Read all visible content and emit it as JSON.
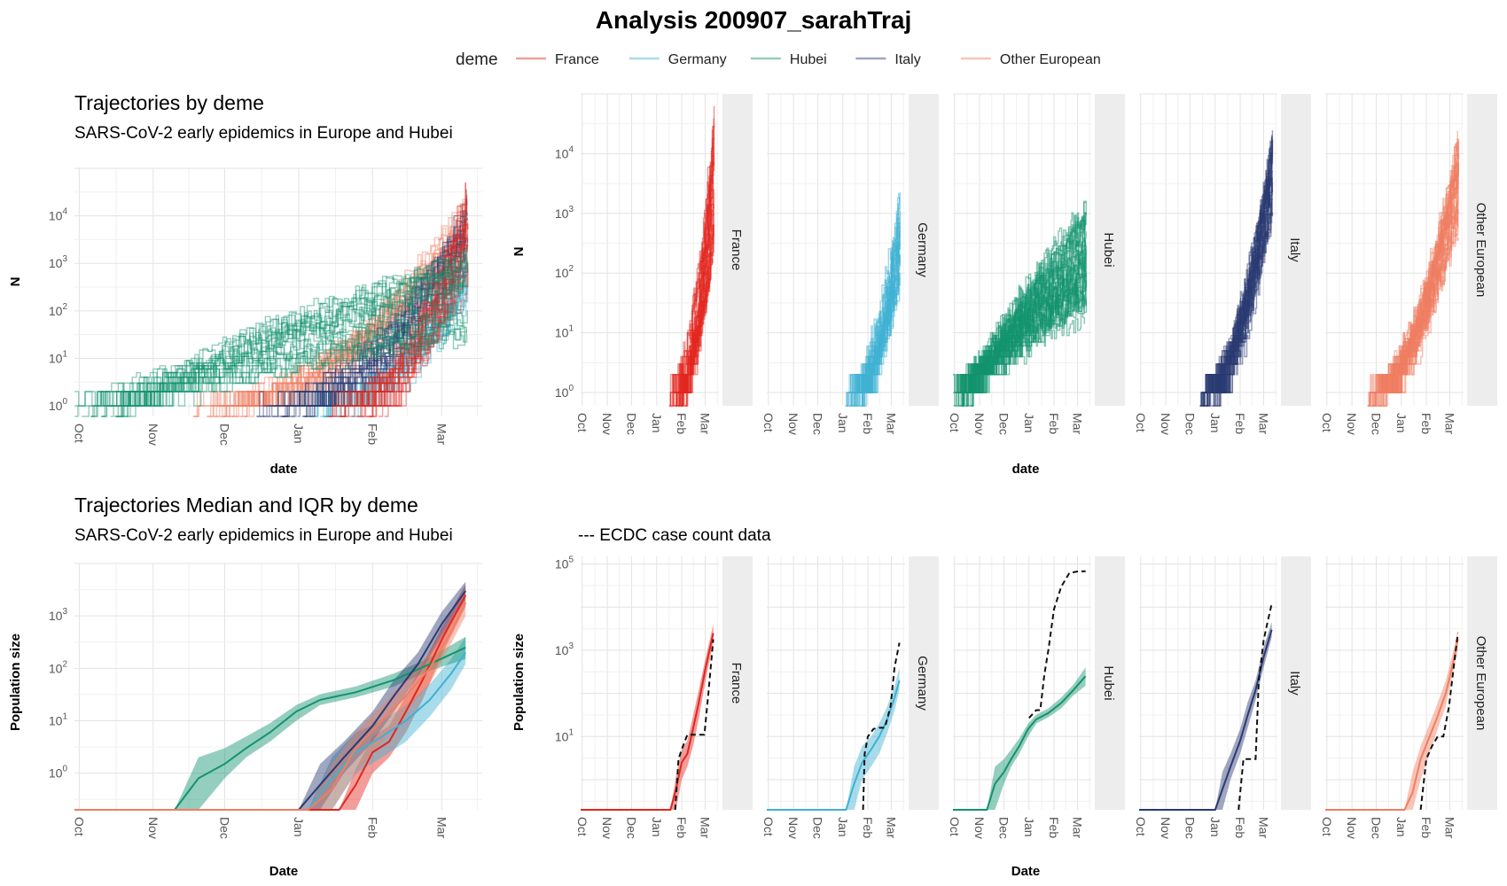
{
  "title": "Analysis  200907_sarahTraj",
  "legend": {
    "title": "deme",
    "position": "top",
    "items": [
      {
        "label": "France",
        "color": "#E3261E"
      },
      {
        "label": "Germany",
        "color": "#3FB1D3"
      },
      {
        "label": "Hubei",
        "color": "#12936E"
      },
      {
        "label": "Italy",
        "color": "#2A3A72"
      },
      {
        "label": "Other European",
        "color": "#F07E62"
      }
    ]
  },
  "panels": {
    "top_left": {
      "title": "Trajectories by deme",
      "subtitle": "SARS-CoV-2 early epidemics in Europe and Hubei",
      "xlabel": "date",
      "ylabel": "N"
    },
    "top_right": {
      "xlabel": "date",
      "ylabel": "N"
    },
    "bottom_left": {
      "title": "Trajectories Median and IQR by deme",
      "subtitle": "SARS-CoV-2 early epidemics in Europe and Hubei",
      "xlabel": "Date",
      "ylabel": "Population size"
    },
    "bottom_right": {
      "subtitle": "--- ECDC case count data",
      "xlabel": "Date",
      "ylabel": "Population size"
    }
  },
  "chart_data": [
    {
      "id": "trajectories-overlay",
      "type": "line",
      "title": "Trajectories by deme",
      "subtitle": "SARS-CoV-2 early epidemics in Europe and Hubei",
      "xlabel": "date",
      "ylabel": "N",
      "y_scale": "log10",
      "x_ticks": [
        "Oct",
        "Nov",
        "Dec",
        "Jan",
        "Feb",
        "Mar"
      ],
      "y_ticks": [
        "10^0",
        "10^1",
        "10^2",
        "10^3",
        "10^4"
      ],
      "xlim": [
        "2019-09-29",
        "2020-03-18"
      ],
      "ylim": [
        0.6,
        100000
      ],
      "grid": true,
      "series_note": "many stochastic trajectories per deme",
      "series": [
        {
          "name": "France",
          "trajectories": 40,
          "start": "2020-01-20",
          "end": "2020-03-12",
          "final_range": [
            300,
            60000
          ]
        },
        {
          "name": "Germany",
          "trajectories": 40,
          "start": "2020-01-10",
          "end": "2020-03-12",
          "final_range": [
            100,
            3500
          ]
        },
        {
          "name": "Hubei",
          "trajectories": 40,
          "start": "2019-10-05",
          "end": "2020-03-12",
          "final_range": [
            20,
            1500
          ]
        },
        {
          "name": "Italy",
          "trajectories": 40,
          "start": "2019-12-20",
          "end": "2020-03-12",
          "final_range": [
            1000,
            25000
          ]
        },
        {
          "name": "Other European",
          "trajectories": 40,
          "start": "2019-11-25",
          "end": "2020-03-12",
          "final_range": [
            500,
            25000
          ]
        }
      ]
    },
    {
      "id": "trajectories-facet",
      "type": "line",
      "xlabel": "date",
      "ylabel": "N",
      "y_scale": "log10",
      "x_ticks": [
        "Oct",
        "Nov",
        "Dec",
        "Jan",
        "Feb",
        "Mar"
      ],
      "y_ticks": [
        "10^0",
        "10^1",
        "10^2",
        "10^3",
        "10^4"
      ],
      "xlim": [
        "2019-09-29",
        "2020-03-18"
      ],
      "ylim": [
        0.6,
        100000
      ],
      "facets": [
        "France",
        "Germany",
        "Hubei",
        "Italy",
        "Other European"
      ],
      "grid": true
    },
    {
      "id": "median-iqr-overlay",
      "type": "area",
      "title": "Trajectories Median and IQR by deme",
      "subtitle": "SARS-CoV-2 early epidemics in Europe and Hubei",
      "xlabel": "Date",
      "ylabel": "Population size",
      "y_scale": "log10",
      "x_ticks": [
        "Oct",
        "Nov",
        "Dec",
        "Jan",
        "Feb",
        "Mar"
      ],
      "y_ticks": [
        "10^0",
        "10^1",
        "10^2",
        "10^3"
      ],
      "xlim": [
        "2019-09-29",
        "2020-03-18"
      ],
      "ylim": [
        0.2,
        10000
      ],
      "grid": true,
      "series": [
        {
          "name": "France",
          "x": [
            "2020-01-18",
            "2020-01-25",
            "2020-02-01",
            "2020-02-08",
            "2020-02-15",
            "2020-02-22",
            "2020-03-01",
            "2020-03-11"
          ],
          "median": [
            0.2,
            0.6,
            2.5,
            4,
            15,
            60,
            350,
            2500
          ],
          "q1": [
            0.2,
            0.2,
            1,
            2,
            6,
            25,
            180,
            1500
          ],
          "q3": [
            0.2,
            1.2,
            5,
            8,
            30,
            120,
            600,
            4000
          ]
        },
        {
          "name": "Germany",
          "x": [
            "2020-01-05",
            "2020-01-15",
            "2020-01-25",
            "2020-02-05",
            "2020-02-15",
            "2020-02-25",
            "2020-03-05",
            "2020-03-11"
          ],
          "median": [
            0.2,
            0.8,
            2.5,
            5,
            10,
            25,
            80,
            200
          ],
          "q1": [
            0.2,
            0.2,
            1,
            2,
            4,
            12,
            40,
            120
          ],
          "q3": [
            0.2,
            2,
            6,
            10,
            20,
            50,
            150,
            400
          ]
        },
        {
          "name": "Hubei",
          "x": [
            "2019-11-10",
            "2019-11-20",
            "2019-12-01",
            "2019-12-10",
            "2019-12-20",
            "2019-12-31",
            "2020-01-10",
            "2020-01-25",
            "2020-02-10",
            "2020-02-25",
            "2020-03-11"
          ],
          "median": [
            0.2,
            0.8,
            1.5,
            3,
            6,
            15,
            25,
            35,
            60,
            120,
            250
          ],
          "q1": [
            0.2,
            0.2,
            0.8,
            2,
            4,
            10,
            20,
            28,
            45,
            90,
            150
          ],
          "q3": [
            0.2,
            2,
            3,
            5,
            9,
            20,
            32,
            45,
            80,
            160,
            400
          ]
        },
        {
          "name": "Italy",
          "x": [
            "2020-01-01",
            "2020-01-10",
            "2020-01-20",
            "2020-02-01",
            "2020-02-10",
            "2020-02-20",
            "2020-03-01",
            "2020-03-11"
          ],
          "median": [
            0.2,
            0.6,
            2,
            8,
            30,
            120,
            700,
            3000
          ],
          "q1": [
            0.2,
            0.2,
            1,
            4,
            15,
            70,
            400,
            2000
          ],
          "q3": [
            0.2,
            1.5,
            4,
            15,
            60,
            200,
            1200,
            4500
          ]
        },
        {
          "name": "Other European",
          "x": [
            "2020-01-05",
            "2020-01-15",
            "2020-01-25",
            "2020-02-05",
            "2020-02-15",
            "2020-02-25",
            "2020-03-05",
            "2020-03-11"
          ],
          "median": [
            0.2,
            0.5,
            3,
            10,
            30,
            100,
            500,
            1800
          ],
          "q1": [
            0.2,
            0.2,
            1,
            4,
            15,
            50,
            300,
            1000
          ],
          "q3": [
            0.2,
            1.5,
            6,
            20,
            60,
            200,
            900,
            3000
          ]
        }
      ]
    },
    {
      "id": "median-iqr-facet-ecdc",
      "type": "area",
      "subtitle": "--- ECDC case count data",
      "xlabel": "Date",
      "ylabel": "Population size",
      "y_scale": "log10",
      "x_ticks": [
        "Oct",
        "Nov",
        "Dec",
        "Jan",
        "Feb",
        "Mar"
      ],
      "y_ticks": [
        "10^1",
        "10^3",
        "10^5"
      ],
      "xlim": [
        "2019-09-29",
        "2020-03-18"
      ],
      "ylim": [
        0.2,
        150000
      ],
      "facets": [
        "France",
        "Germany",
        "Hubei",
        "Italy",
        "Other European"
      ],
      "ecdc": [
        {
          "name": "France",
          "x": [
            "2020-01-24",
            "2020-01-28",
            "2020-02-01",
            "2020-02-08",
            "2020-02-15",
            "2020-02-22",
            "2020-02-29",
            "2020-03-05",
            "2020-03-11"
          ],
          "y": [
            0.2,
            3,
            5,
            11,
            11,
            11,
            11,
            100,
            1800
          ]
        },
        {
          "name": "Germany",
          "x": [
            "2020-01-26",
            "2020-01-28",
            "2020-02-01",
            "2020-02-08",
            "2020-02-15",
            "2020-02-22",
            "2020-02-29",
            "2020-03-05",
            "2020-03-11"
          ],
          "y": [
            0.2,
            4,
            10,
            15,
            16,
            16,
            50,
            400,
            1500
          ]
        },
        {
          "name": "Hubei",
          "x": [
            "2020-01-01",
            "2020-01-10",
            "2020-01-15",
            "2020-01-20",
            "2020-01-25",
            "2020-02-01",
            "2020-02-10",
            "2020-02-20",
            "2020-03-01",
            "2020-03-11"
          ],
          "y": [
            27,
            41,
            41,
            270,
            1000,
            9000,
            30000,
            62000,
            67000,
            68000
          ]
        },
        {
          "name": "Italy",
          "x": [
            "2020-01-30",
            "2020-02-05",
            "2020-02-15",
            "2020-02-20",
            "2020-02-24",
            "2020-03-01",
            "2020-03-05",
            "2020-03-11"
          ],
          "y": [
            0.2,
            3,
            3,
            3,
            200,
            1700,
            3800,
            12000
          ]
        },
        {
          "name": "Other European",
          "x": [
            "2020-01-25",
            "2020-02-01",
            "2020-02-08",
            "2020-02-15",
            "2020-02-22",
            "2020-02-29",
            "2020-03-05",
            "2020-03-11"
          ],
          "y": [
            0.2,
            3,
            6,
            10,
            10,
            50,
            300,
            2500
          ]
        }
      ]
    }
  ]
}
